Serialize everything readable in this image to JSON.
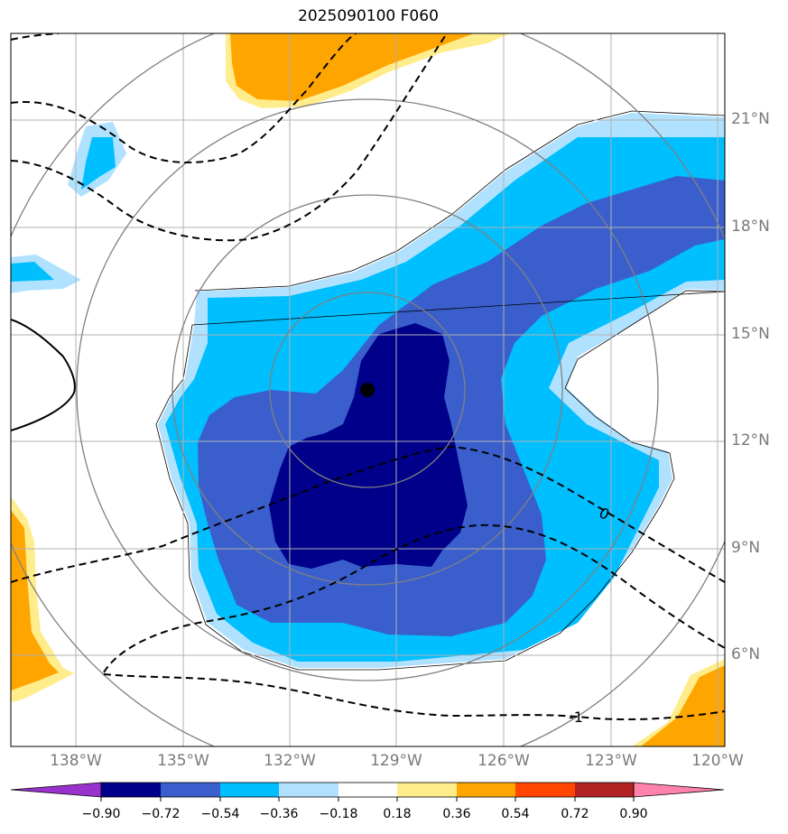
{
  "title": "2025090100 F060",
  "lat_labels": [
    "21°N",
    "18°N",
    "15°N",
    "12°N",
    "9°N",
    "6°N"
  ],
  "lon_labels": [
    "138°W",
    "135°W",
    "132°W",
    "129°W",
    "126°W",
    "123°W",
    "120°W"
  ],
  "contour_labels": [
    "0",
    "-1"
  ],
  "colorbar": {
    "ticks": [
      "−0.90",
      "−0.72",
      "−0.54",
      "−0.36",
      "−0.18",
      "0.18",
      "0.36",
      "0.54",
      "0.72",
      "0.90"
    ],
    "colors": [
      "#9932cc",
      "#00008b",
      "#3a5fcd",
      "#00bfff",
      "#b0e2ff",
      "#ffffff",
      "#ffec8b",
      "#ffa500",
      "#ff4500",
      "#b22222",
      "#ff82ab"
    ]
  },
  "colors": {
    "dark_blue": "#00008b",
    "mid_blue": "#3a5fcd",
    "light_blue": "#00bfff",
    "pale_blue": "#b0e2ff",
    "yellow": "#ffec8b",
    "orange": "#ffa500",
    "grid": "#b0b0b0",
    "range_rings": "#808080"
  },
  "storm_center": {
    "lat": 13.5,
    "lon": "129.8°W"
  }
}
